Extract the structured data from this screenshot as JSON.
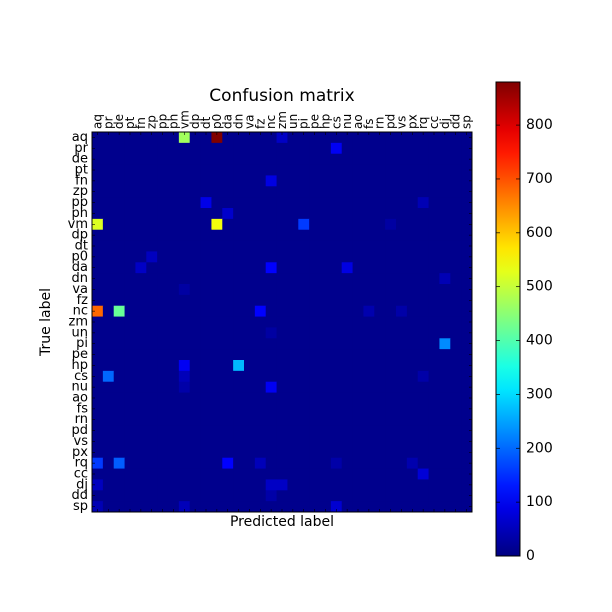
{
  "chart_data": {
    "type": "heatmap",
    "title": "Confusion matrix",
    "xlabel": "Predicted label",
    "ylabel": "True label",
    "labels": [
      "aq",
      "pr",
      "de",
      "pt",
      "fn",
      "zp",
      "pp",
      "ph",
      "vm",
      "dp",
      "dt",
      "p0",
      "da",
      "dn",
      "va",
      "fz",
      "nc",
      "zm",
      "un",
      "pi",
      "pe",
      "hp",
      "cs",
      "nu",
      "ao",
      "fs",
      "rn",
      "pd",
      "vs",
      "px",
      "rq",
      "cc",
      "dj",
      "dd",
      "sp"
    ],
    "colorbar": {
      "min": 0,
      "max": 880,
      "ticks": [
        0,
        100,
        200,
        300,
        400,
        500,
        600,
        700,
        800
      ]
    },
    "background_value": 12,
    "cells": [
      {
        "row": 0,
        "col": 8,
        "value": 470
      },
      {
        "row": 0,
        "col": 11,
        "value": 880
      },
      {
        "row": 0,
        "col": 17,
        "value": 60
      },
      {
        "row": 1,
        "col": 22,
        "value": 100
      },
      {
        "row": 4,
        "col": 16,
        "value": 85
      },
      {
        "row": 6,
        "col": 10,
        "value": 90
      },
      {
        "row": 6,
        "col": 30,
        "value": 45
      },
      {
        "row": 7,
        "col": 12,
        "value": 65
      },
      {
        "row": 8,
        "col": 0,
        "value": 520
      },
      {
        "row": 8,
        "col": 11,
        "value": 540
      },
      {
        "row": 8,
        "col": 19,
        "value": 160
      },
      {
        "row": 8,
        "col": 27,
        "value": 30
      },
      {
        "row": 11,
        "col": 5,
        "value": 55
      },
      {
        "row": 12,
        "col": 4,
        "value": 60
      },
      {
        "row": 12,
        "col": 16,
        "value": 110
      },
      {
        "row": 12,
        "col": 23,
        "value": 85
      },
      {
        "row": 13,
        "col": 32,
        "value": 45
      },
      {
        "row": 14,
        "col": 8,
        "value": 30
      },
      {
        "row": 16,
        "col": 0,
        "value": 680
      },
      {
        "row": 16,
        "col": 2,
        "value": 420
      },
      {
        "row": 16,
        "col": 15,
        "value": 110
      },
      {
        "row": 16,
        "col": 25,
        "value": 40
      },
      {
        "row": 16,
        "col": 28,
        "value": 35
      },
      {
        "row": 18,
        "col": 16,
        "value": 30
      },
      {
        "row": 19,
        "col": 32,
        "value": 230
      },
      {
        "row": 21,
        "col": 8,
        "value": 100
      },
      {
        "row": 21,
        "col": 13,
        "value": 270
      },
      {
        "row": 22,
        "col": 1,
        "value": 200
      },
      {
        "row": 22,
        "col": 8,
        "value": 50
      },
      {
        "row": 22,
        "col": 30,
        "value": 35
      },
      {
        "row": 23,
        "col": 16,
        "value": 100
      },
      {
        "row": 23,
        "col": 8,
        "value": 35
      },
      {
        "row": 30,
        "col": 0,
        "value": 160
      },
      {
        "row": 30,
        "col": 2,
        "value": 190
      },
      {
        "row": 30,
        "col": 12,
        "value": 110
      },
      {
        "row": 30,
        "col": 15,
        "value": 50
      },
      {
        "row": 30,
        "col": 22,
        "value": 35
      },
      {
        "row": 30,
        "col": 29,
        "value": 40
      },
      {
        "row": 31,
        "col": 30,
        "value": 75
      },
      {
        "row": 32,
        "col": 0,
        "value": 55
      },
      {
        "row": 32,
        "col": 16,
        "value": 60
      },
      {
        "row": 32,
        "col": 17,
        "value": 60
      },
      {
        "row": 33,
        "col": 16,
        "value": 35
      },
      {
        "row": 34,
        "col": 0,
        "value": 45
      },
      {
        "row": 34,
        "col": 8,
        "value": 50
      },
      {
        "row": 34,
        "col": 22,
        "value": 70
      }
    ]
  }
}
